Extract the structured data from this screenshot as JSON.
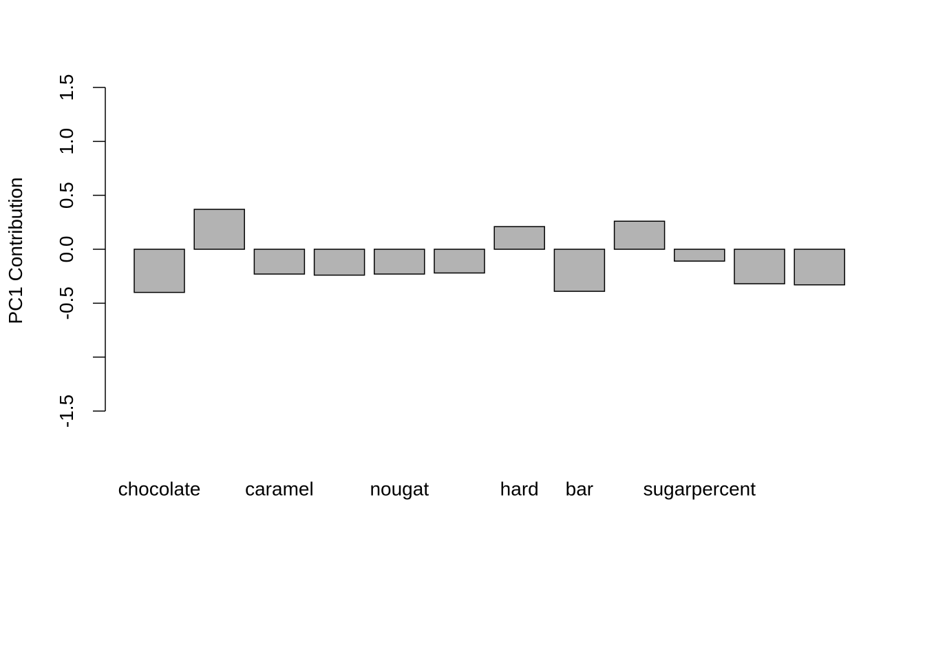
{
  "chart_data": {
    "type": "bar",
    "title": "",
    "xlabel": "",
    "ylabel": "PC1 Contribution",
    "ylim": [
      -1.5,
      1.5
    ],
    "yticks": [
      -1.5,
      -1.0,
      -0.5,
      0.0,
      0.5,
      1.0,
      1.5
    ],
    "ytick_labels": [
      "-1.5",
      "",
      "-0.5",
      "0.0",
      "0.5",
      "1.0",
      "1.5"
    ],
    "categories": [
      "chocolate",
      "",
      "caramel",
      "",
      "nougat",
      "",
      "hard",
      "bar",
      "",
      "sugarpercent",
      "",
      ""
    ],
    "values": [
      -0.4,
      0.37,
      -0.23,
      -0.24,
      -0.23,
      -0.22,
      0.21,
      -0.39,
      0.26,
      -0.11,
      -0.32,
      -0.33
    ],
    "bar_color": "#b3b3b3",
    "grid": false,
    "legend": false
  }
}
